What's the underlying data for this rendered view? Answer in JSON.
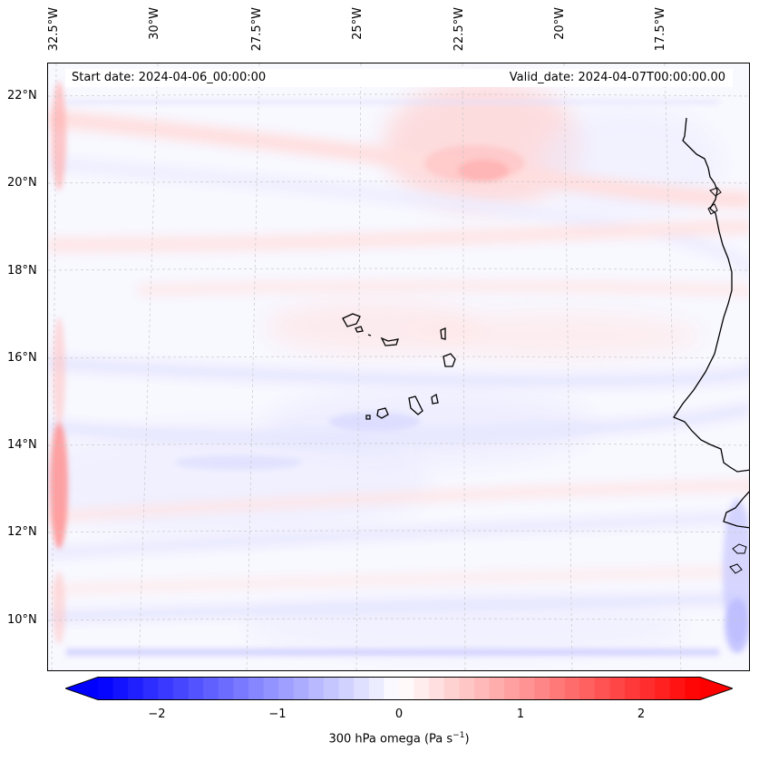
{
  "annotations": {
    "start_date": "Start date: 2024-04-06_00:00:00",
    "valid_date": "Valid_date: 2024-04-07T00:00:00.00"
  },
  "axes": {
    "lon_labels": [
      "32.5°W",
      "30°W",
      "27.5°W",
      "25°W",
      "22.5°W",
      "20°W",
      "17.5°W"
    ],
    "lat_labels": [
      "22°N",
      "20°N",
      "18°N",
      "16°N",
      "14°N",
      "12°N",
      "10°N"
    ]
  },
  "colorbar": {
    "ticks": [
      "−2",
      "−1",
      "0",
      "1",
      "2"
    ],
    "label_prefix": "300 hPa omega (Pa s",
    "label_exponent": "−1",
    "label_suffix": ")",
    "min": -2.75,
    "max": 2.75,
    "colormap": "bwr",
    "extend": "both"
  },
  "colors": {
    "negative": "#0000ff",
    "neutral": "#ffffff",
    "positive": "#ff0000",
    "coastline": "#000000"
  }
}
